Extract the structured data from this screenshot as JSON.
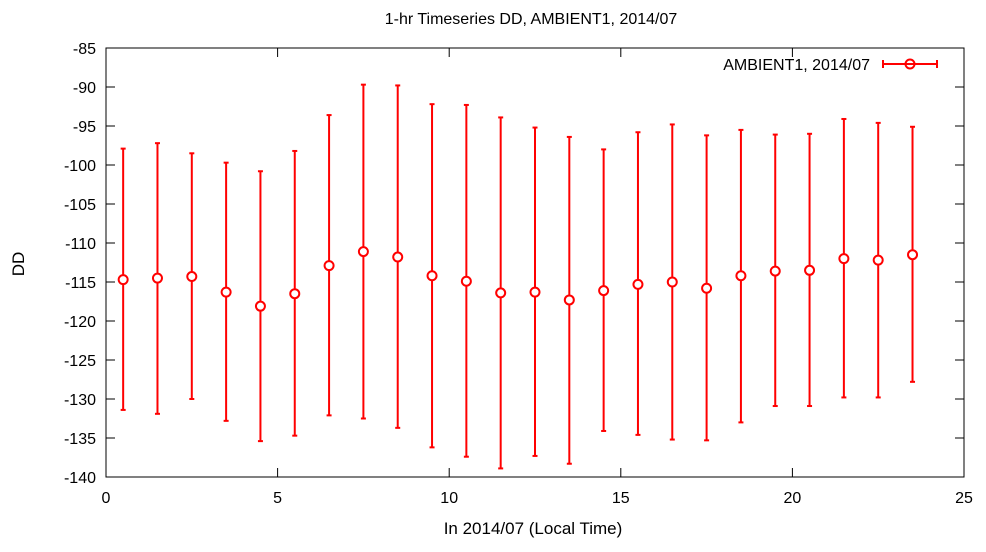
{
  "chart_data": {
    "type": "scatter",
    "title": "1-hr Timeseries DD, AMBIENT1, 2014/07",
    "xlabel": "In 2014/07 (Local Time)",
    "ylabel": "DD",
    "xlim": [
      0,
      25
    ],
    "ylim": [
      -140,
      -85
    ],
    "xticks": [
      0,
      5,
      10,
      15,
      20,
      25
    ],
    "yticks": [
      -140,
      -135,
      -130,
      -125,
      -120,
      -115,
      -110,
      -105,
      -100,
      -95,
      -90,
      -85
    ],
    "grid": false,
    "legend_position": "top-right",
    "series": [
      {
        "name": "AMBIENT1, 2014/07",
        "color": "#ff0000",
        "marker": "circle",
        "error_bars": true,
        "x": [
          0.5,
          1.5,
          2.5,
          3.5,
          4.5,
          5.5,
          6.5,
          7.5,
          8.5,
          9.5,
          10.5,
          11.5,
          12.5,
          13.5,
          14.5,
          15.5,
          16.5,
          17.5,
          18.5,
          19.5,
          20.5,
          21.5,
          22.5,
          23.5
        ],
        "y": [
          -114.7,
          -114.5,
          -114.3,
          -116.3,
          -118.1,
          -116.5,
          -112.9,
          -111.1,
          -111.8,
          -114.2,
          -114.9,
          -116.4,
          -116.3,
          -117.3,
          -116.1,
          -115.3,
          -115.0,
          -115.8,
          -114.2,
          -113.6,
          -113.5,
          -112.0,
          -112.2,
          -111.5
        ],
        "y_upper": [
          -97.9,
          -97.2,
          -98.5,
          -99.7,
          -100.8,
          -98.2,
          -93.6,
          -89.7,
          -89.8,
          -92.2,
          -92.3,
          -93.9,
          -95.2,
          -96.4,
          -98.0,
          -95.8,
          -94.8,
          -96.2,
          -95.5,
          -96.1,
          -96.0,
          -94.1,
          -94.6,
          -95.1
        ],
        "y_lower": [
          -131.4,
          -131.9,
          -130.0,
          -132.8,
          -135.4,
          -134.7,
          -132.1,
          -132.5,
          -133.7,
          -136.2,
          -137.4,
          -138.9,
          -137.3,
          -138.3,
          -134.1,
          -134.6,
          -135.2,
          -135.3,
          -133.0,
          -130.9,
          -130.9,
          -129.8,
          -129.8,
          -127.8
        ]
      }
    ]
  }
}
